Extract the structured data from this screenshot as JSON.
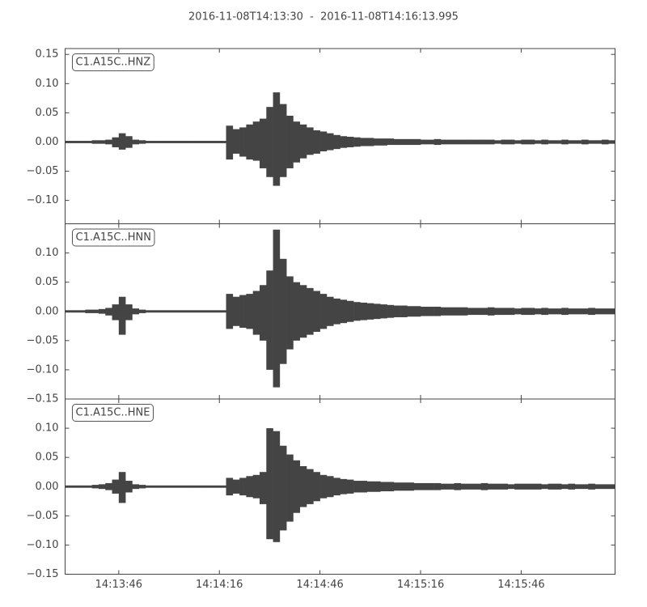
{
  "title": "2016-11-08T14:13:30  -  2016-11-08T14:16:13.995",
  "xaxis": {
    "xlim": [
      0,
      163.995
    ],
    "xticks": [
      {
        "value": 16,
        "label": "14:13:46"
      },
      {
        "value": 46,
        "label": "14:14:16"
      },
      {
        "value": 76,
        "label": "14:14:46"
      },
      {
        "value": 106,
        "label": "14:15:16"
      },
      {
        "value": 136,
        "label": "14:15:46"
      }
    ]
  },
  "x": [
    0,
    2,
    4,
    6,
    8,
    10,
    12,
    14,
    16,
    18,
    20,
    22,
    24,
    26,
    28,
    30,
    32,
    34,
    36,
    38,
    40,
    42,
    44,
    46,
    48,
    50,
    52,
    54,
    56,
    58,
    60,
    62,
    64,
    66,
    68,
    70,
    72,
    74,
    76,
    78,
    80,
    82,
    84,
    86,
    88,
    90,
    92,
    94,
    96,
    98,
    100,
    102,
    104,
    106,
    108,
    110,
    112,
    114,
    116,
    118,
    120,
    122,
    124,
    126,
    128,
    130,
    132,
    134,
    136,
    138,
    140,
    142,
    144,
    146,
    148,
    150,
    152,
    154,
    156,
    158,
    160,
    162
  ],
  "chart_data": [
    {
      "type": "waveform",
      "label": "C1.A15C..HNZ",
      "color": "#444444",
      "ylim": [
        -0.14,
        0.16
      ],
      "yticks": [
        {
          "value": -0.1,
          "label": "−0.10"
        },
        {
          "value": -0.05,
          "label": "−0.05"
        },
        {
          "value": 0,
          "label": "0.00"
        },
        {
          "value": 0.05,
          "label": "0.05"
        },
        {
          "value": 0.1,
          "label": "0.10"
        },
        {
          "value": 0.15,
          "label": "0.15"
        }
      ],
      "max": [
        0.002,
        0.002,
        0.002,
        0.002,
        0.003,
        0.003,
        0.004,
        0.008,
        0.015,
        0.01,
        0.004,
        0.003,
        0.002,
        0.002,
        0.002,
        0.002,
        0.002,
        0.002,
        0.002,
        0.002,
        0.002,
        0.002,
        0.002,
        0.002,
        0.028,
        0.022,
        0.025,
        0.03,
        0.035,
        0.04,
        0.06,
        0.085,
        0.065,
        0.045,
        0.035,
        0.03,
        0.025,
        0.02,
        0.018,
        0.015,
        0.012,
        0.01,
        0.009,
        0.008,
        0.007,
        0.007,
        0.006,
        0.006,
        0.006,
        0.005,
        0.005,
        0.005,
        0.005,
        0.004,
        0.004,
        0.005,
        0.004,
        0.004,
        0.004,
        0.004,
        0.004,
        0.004,
        0.004,
        0.004,
        0.003,
        0.004,
        0.004,
        0.003,
        0.004,
        0.004,
        0.003,
        0.004,
        0.003,
        0.003,
        0.004,
        0.003,
        0.003,
        0.004,
        0.003,
        0.003,
        0.004,
        0.003
      ],
      "min": [
        -0.002,
        -0.002,
        -0.002,
        -0.002,
        -0.003,
        -0.003,
        -0.004,
        -0.009,
        -0.013,
        -0.01,
        -0.004,
        -0.003,
        -0.002,
        -0.002,
        -0.002,
        -0.002,
        -0.002,
        -0.002,
        -0.002,
        -0.002,
        -0.002,
        -0.002,
        -0.002,
        -0.002,
        -0.03,
        -0.02,
        -0.025,
        -0.03,
        -0.032,
        -0.045,
        -0.06,
        -0.075,
        -0.06,
        -0.045,
        -0.035,
        -0.028,
        -0.022,
        -0.02,
        -0.016,
        -0.014,
        -0.012,
        -0.01,
        -0.009,
        -0.008,
        -0.007,
        -0.007,
        -0.006,
        -0.006,
        -0.005,
        -0.005,
        -0.005,
        -0.005,
        -0.005,
        -0.004,
        -0.004,
        -0.005,
        -0.004,
        -0.004,
        -0.004,
        -0.004,
        -0.004,
        -0.004,
        -0.004,
        -0.004,
        -0.003,
        -0.004,
        -0.004,
        -0.003,
        -0.004,
        -0.004,
        -0.003,
        -0.004,
        -0.003,
        -0.003,
        -0.004,
        -0.003,
        -0.003,
        -0.004,
        -0.003,
        -0.003,
        -0.004,
        -0.003
      ]
    },
    {
      "type": "waveform",
      "label": "C1.A15C..HNN",
      "color": "#444444",
      "ylim": [
        -0.15,
        0.15
      ],
      "yticks": [
        {
          "value": -0.15,
          "label": "−0.15"
        },
        {
          "value": -0.1,
          "label": "−0.10"
        },
        {
          "value": -0.05,
          "label": "−0.05"
        },
        {
          "value": 0,
          "label": "0.00"
        },
        {
          "value": 0.05,
          "label": "0.05"
        },
        {
          "value": 0.1,
          "label": "0.10"
        }
      ],
      "max": [
        0.002,
        0.002,
        0.002,
        0.003,
        0.003,
        0.004,
        0.006,
        0.012,
        0.025,
        0.012,
        0.005,
        0.003,
        0.002,
        0.002,
        0.002,
        0.002,
        0.002,
        0.002,
        0.002,
        0.002,
        0.002,
        0.002,
        0.002,
        0.002,
        0.03,
        0.025,
        0.028,
        0.03,
        0.035,
        0.045,
        0.07,
        0.14,
        0.09,
        0.06,
        0.05,
        0.045,
        0.04,
        0.035,
        0.03,
        0.025,
        0.022,
        0.02,
        0.018,
        0.016,
        0.015,
        0.014,
        0.013,
        0.012,
        0.011,
        0.01,
        0.01,
        0.009,
        0.009,
        0.008,
        0.008,
        0.008,
        0.007,
        0.007,
        0.007,
        0.007,
        0.006,
        0.006,
        0.006,
        0.007,
        0.006,
        0.006,
        0.006,
        0.005,
        0.006,
        0.006,
        0.005,
        0.006,
        0.005,
        0.005,
        0.006,
        0.005,
        0.005,
        0.005,
        0.006,
        0.005,
        0.005,
        0.005
      ],
      "min": [
        -0.002,
        -0.002,
        -0.002,
        -0.003,
        -0.003,
        -0.004,
        -0.007,
        -0.015,
        -0.04,
        -0.015,
        -0.005,
        -0.003,
        -0.002,
        -0.002,
        -0.002,
        -0.002,
        -0.002,
        -0.002,
        -0.002,
        -0.002,
        -0.002,
        -0.002,
        -0.002,
        -0.002,
        -0.03,
        -0.025,
        -0.028,
        -0.03,
        -0.04,
        -0.05,
        -0.1,
        -0.13,
        -0.09,
        -0.065,
        -0.05,
        -0.045,
        -0.04,
        -0.035,
        -0.03,
        -0.025,
        -0.022,
        -0.02,
        -0.018,
        -0.016,
        -0.015,
        -0.014,
        -0.013,
        -0.012,
        -0.011,
        -0.01,
        -0.01,
        -0.009,
        -0.009,
        -0.008,
        -0.008,
        -0.008,
        -0.007,
        -0.007,
        -0.007,
        -0.007,
        -0.006,
        -0.006,
        -0.006,
        -0.007,
        -0.006,
        -0.006,
        -0.006,
        -0.005,
        -0.006,
        -0.006,
        -0.005,
        -0.006,
        -0.005,
        -0.005,
        -0.006,
        -0.005,
        -0.005,
        -0.005,
        -0.006,
        -0.005,
        -0.005,
        -0.005
      ]
    },
    {
      "type": "waveform",
      "label": "C1.A15C..HNE",
      "color": "#444444",
      "ylim": [
        -0.15,
        0.15
      ],
      "yticks": [
        {
          "value": -0.15,
          "label": "−0.15"
        },
        {
          "value": -0.1,
          "label": "−0.10"
        },
        {
          "value": -0.05,
          "label": "−0.05"
        },
        {
          "value": 0,
          "label": "0.00"
        },
        {
          "value": 0.05,
          "label": "0.05"
        },
        {
          "value": 0.1,
          "label": "0.10"
        }
      ],
      "max": [
        0.002,
        0.002,
        0.002,
        0.002,
        0.003,
        0.004,
        0.006,
        0.012,
        0.025,
        0.01,
        0.004,
        0.003,
        0.002,
        0.002,
        0.002,
        0.002,
        0.002,
        0.002,
        0.002,
        0.002,
        0.002,
        0.002,
        0.002,
        0.002,
        0.015,
        0.012,
        0.015,
        0.018,
        0.02,
        0.025,
        0.1,
        0.095,
        0.07,
        0.055,
        0.045,
        0.035,
        0.03,
        0.025,
        0.02,
        0.018,
        0.015,
        0.013,
        0.012,
        0.01,
        0.01,
        0.009,
        0.009,
        0.008,
        0.008,
        0.007,
        0.007,
        0.007,
        0.006,
        0.006,
        0.006,
        0.006,
        0.005,
        0.005,
        0.006,
        0.005,
        0.005,
        0.005,
        0.006,
        0.005,
        0.005,
        0.005,
        0.004,
        0.005,
        0.005,
        0.005,
        0.005,
        0.004,
        0.005,
        0.005,
        0.004,
        0.005,
        0.004,
        0.004,
        0.005,
        0.004,
        0.004,
        0.004
      ],
      "min": [
        -0.002,
        -0.002,
        -0.002,
        -0.002,
        -0.003,
        -0.004,
        -0.006,
        -0.012,
        -0.028,
        -0.01,
        -0.004,
        -0.003,
        -0.002,
        -0.002,
        -0.002,
        -0.002,
        -0.002,
        -0.002,
        -0.002,
        -0.002,
        -0.002,
        -0.002,
        -0.002,
        -0.002,
        -0.015,
        -0.012,
        -0.015,
        -0.018,
        -0.02,
        -0.03,
        -0.09,
        -0.095,
        -0.075,
        -0.06,
        -0.045,
        -0.035,
        -0.03,
        -0.025,
        -0.02,
        -0.018,
        -0.015,
        -0.013,
        -0.012,
        -0.01,
        -0.01,
        -0.009,
        -0.009,
        -0.008,
        -0.008,
        -0.007,
        -0.007,
        -0.007,
        -0.006,
        -0.006,
        -0.006,
        -0.006,
        -0.005,
        -0.005,
        -0.006,
        -0.005,
        -0.005,
        -0.005,
        -0.006,
        -0.005,
        -0.005,
        -0.005,
        -0.004,
        -0.005,
        -0.005,
        -0.005,
        -0.005,
        -0.004,
        -0.005,
        -0.005,
        -0.004,
        -0.005,
        -0.004,
        -0.004,
        -0.005,
        -0.004,
        -0.004,
        -0.004
      ]
    }
  ]
}
